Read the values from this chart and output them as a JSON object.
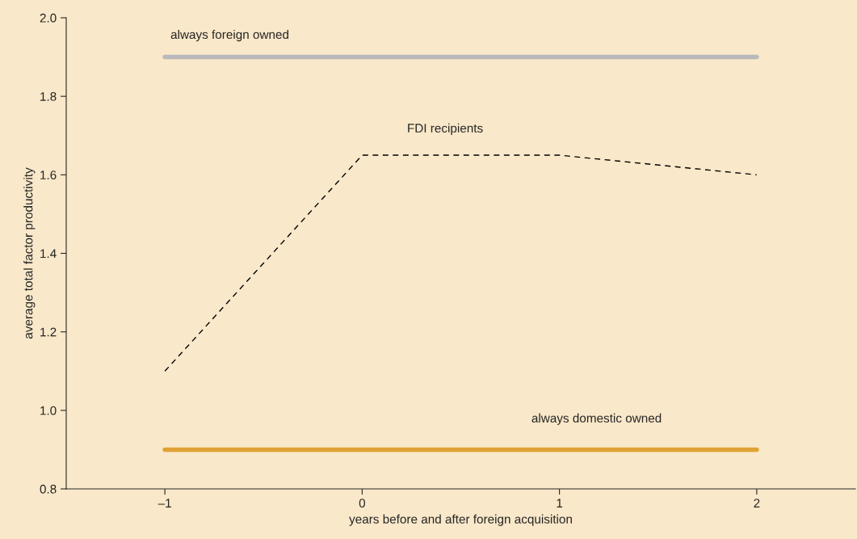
{
  "chart_data": {
    "type": "line",
    "xlabel": "years before and after foreign acquisition",
    "ylabel": "average total factor productivity",
    "x": [
      -1,
      0,
      1,
      2
    ],
    "series": [
      {
        "name": "always foreign owned",
        "color": "#b9b9bb",
        "values": [
          1.9,
          1.9,
          1.9,
          1.9
        ],
        "line_style": "solid"
      },
      {
        "name": "FDI recipients",
        "color": "#000000",
        "values": [
          1.1,
          1.65,
          1.65,
          1.6
        ],
        "line_style": "dashed"
      },
      {
        "name": "always domestic owned",
        "color": "#e0a234",
        "values": [
          0.9,
          0.9,
          0.9,
          0.9
        ],
        "line_style": "solid"
      }
    ],
    "xlim": [
      -1.5,
      2.5
    ],
    "ylim": [
      0.8,
      2.0
    ],
    "xticks": [
      {
        "value": -1,
        "label": "–1"
      },
      0,
      1,
      2
    ],
    "yticks": [
      {
        "value": 0.8,
        "label": "0.8"
      },
      {
        "value": 1.0,
        "label": "1.0"
      },
      {
        "value": 1.2,
        "label": "1.2"
      },
      {
        "value": 1.4,
        "label": "1.4"
      },
      {
        "value": 1.6,
        "label": "1.6"
      },
      {
        "value": 1.8,
        "label": "1.8"
      },
      {
        "value": 2.0,
        "label": "2.0"
      }
    ],
    "grid": false,
    "legend": false,
    "marker": "none"
  }
}
